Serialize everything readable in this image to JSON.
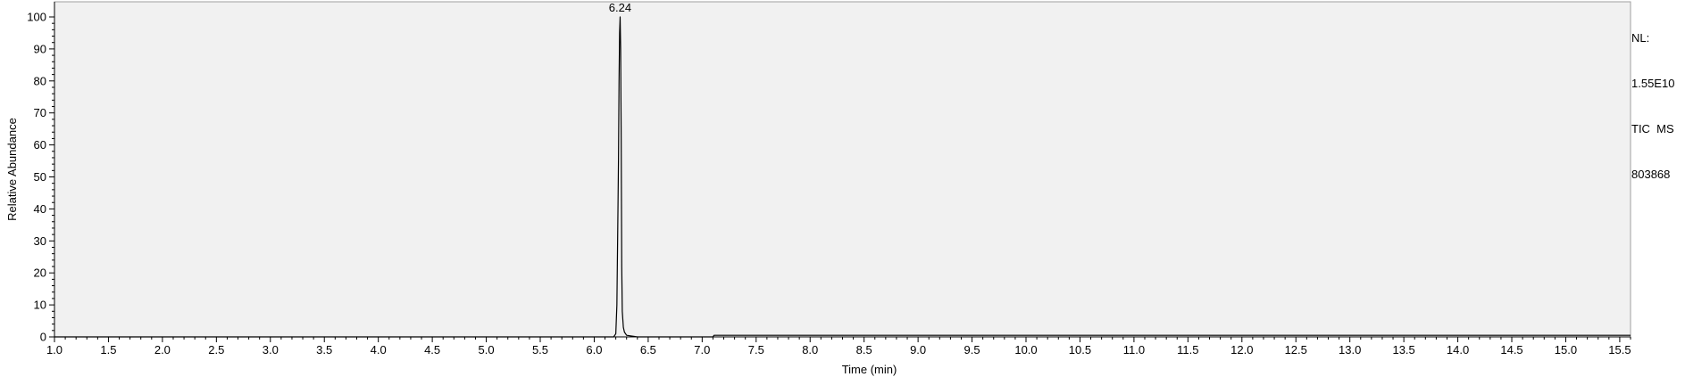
{
  "chart_data": {
    "type": "line",
    "title": "",
    "xlabel": "Time (min)",
    "ylabel": "Relative Abundance",
    "xlim": [
      1.0,
      15.6
    ],
    "ylim": [
      0,
      100
    ],
    "x_ticks": [
      "1.0",
      "1.5",
      "2.0",
      "2.5",
      "3.0",
      "3.5",
      "4.0",
      "4.5",
      "5.0",
      "5.5",
      "6.0",
      "6.5",
      "7.0",
      "7.5",
      "8.0",
      "8.5",
      "9.0",
      "9.5",
      "10.0",
      "10.5",
      "11.0",
      "11.5",
      "12.0",
      "12.5",
      "13.0",
      "13.5",
      "14.0",
      "14.5",
      "15.0",
      "15.5"
    ],
    "y_ticks": [
      "0",
      "10",
      "20",
      "30",
      "40",
      "50",
      "60",
      "70",
      "80",
      "90",
      "100"
    ],
    "grid": false,
    "series": [
      {
        "x": [
          1.0,
          6.0,
          6.18,
          6.2,
          6.21,
          6.22,
          6.225,
          6.23,
          6.235,
          6.24,
          6.245,
          6.25,
          6.255,
          6.26,
          6.27,
          6.28,
          6.3,
          6.4,
          7.1,
          7.11,
          15.6
        ],
        "y": [
          0,
          0,
          0,
          1,
          10,
          40,
          56,
          80,
          95,
          100,
          90,
          62,
          22,
          8,
          3,
          1.5,
          0.5,
          0,
          0,
          0.5,
          0.5
        ]
      }
    ],
    "annotations": [
      {
        "x": 6.24,
        "y": 100,
        "text": "6.24"
      }
    ]
  },
  "info_panel": {
    "line1": "NL:",
    "line2": "1.55E10",
    "line3": "TIC  MS",
    "line4": "803868"
  },
  "colors": {
    "plot_background": "#f1f1f1",
    "trace": "#000000",
    "axis": "#000000",
    "border": "#a0a0a0"
  }
}
